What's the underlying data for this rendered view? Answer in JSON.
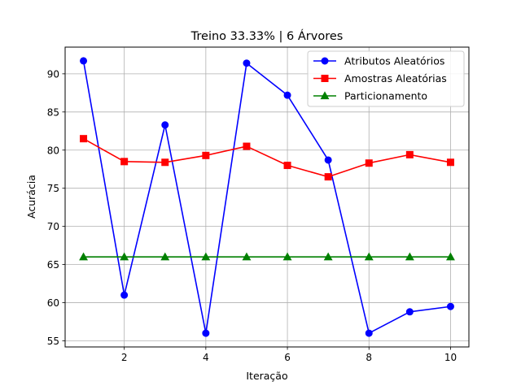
{
  "chart_data": {
    "type": "line",
    "title": "Treino 33.33% | 6 Árvores",
    "xlabel": "Iteração",
    "ylabel": "Acurácia",
    "xlim": [
      0.55,
      10.45
    ],
    "ylim": [
      54.2,
      93.5
    ],
    "xticks": [
      2,
      4,
      6,
      8,
      10
    ],
    "yticks": [
      55,
      60,
      65,
      70,
      75,
      80,
      85,
      90
    ],
    "grid": true,
    "legend_position": "upper right",
    "x": [
      1,
      2,
      3,
      4,
      5,
      6,
      7,
      8,
      9,
      10
    ],
    "series": [
      {
        "name": "Atributos Aleatórios",
        "color": "#0000ff",
        "marker": "circle",
        "values": [
          91.7,
          61.0,
          83.3,
          56.0,
          91.4,
          87.2,
          78.7,
          56.0,
          58.8,
          59.5
        ]
      },
      {
        "name": "Amostras Aleatórias",
        "color": "#ff0000",
        "marker": "square",
        "values": [
          81.5,
          78.5,
          78.4,
          79.3,
          80.5,
          78.0,
          76.5,
          78.3,
          79.4,
          78.4
        ]
      },
      {
        "name": "Particionamento",
        "color": "#008000",
        "marker": "triangle",
        "values": [
          66.0,
          66.0,
          66.0,
          66.0,
          66.0,
          66.0,
          66.0,
          66.0,
          66.0,
          66.0
        ]
      }
    ]
  }
}
